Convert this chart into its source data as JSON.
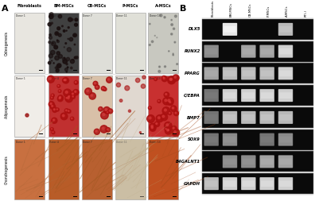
{
  "panel_A_label": "A",
  "panel_B_label": "B",
  "col_headers": [
    "Fibroblasts",
    "BM-MSCs",
    "CB-MSCs",
    "P-MSCs",
    "A-MSCs"
  ],
  "row_labels": [
    "Osteogenesis",
    "Adipogenesis",
    "Chondrogenesis"
  ],
  "donor_labels": [
    "Donor 1",
    "Donor 4",
    "Donor 7",
    "Donor 11",
    "Donor 13"
  ],
  "gel_columns": [
    "Fibroblasts",
    "BM-MSCs",
    "CB-MSCs",
    "P-MSCs",
    "A-MSCs",
    "RT(-)"
  ],
  "gel_genes": [
    "DLX5",
    "RUNX2",
    "PPARG",
    "C/EBPA",
    "BMP7",
    "SOX9",
    "B4GALNT1",
    "GAPDH"
  ],
  "band_presence": {
    "DLX5": [
      0,
      1,
      0,
      0,
      1,
      0
    ],
    "RUNX2": [
      1,
      0,
      1,
      1,
      1,
      0
    ],
    "PPARG": [
      1,
      1,
      1,
      1,
      1,
      0
    ],
    "C/EBPA": [
      1,
      1,
      1,
      1,
      1,
      0
    ],
    "BMP7": [
      1,
      1,
      1,
      1,
      1,
      0
    ],
    "SOX9": [
      1,
      1,
      0,
      1,
      1,
      0
    ],
    "B4GALNT1": [
      0,
      1,
      1,
      1,
      1,
      0
    ],
    "GAPDH": [
      1,
      1,
      1,
      1,
      1,
      0
    ]
  },
  "band_brightness": {
    "DLX5": [
      0,
      1.0,
      0,
      0,
      0.8,
      0
    ],
    "RUNX2": [
      0.6,
      0,
      0.7,
      0.7,
      0.9,
      0
    ],
    "PPARG": [
      0.7,
      0.8,
      0.8,
      0.8,
      0.9,
      0
    ],
    "C/EBPA": [
      0.5,
      0.9,
      0.9,
      0.9,
      0.9,
      0
    ],
    "BMP7": [
      0.5,
      0.8,
      0.8,
      0.8,
      0.8,
      0
    ],
    "SOX9": [
      0.5,
      0.6,
      0,
      0.5,
      0.6,
      0
    ],
    "B4GALNT1": [
      0,
      0.6,
      0.6,
      0.7,
      0.7,
      0
    ],
    "GAPDH": [
      0.8,
      0.9,
      0.9,
      0.9,
      0.9,
      0
    ]
  },
  "osteogenesis_colors": [
    "#e8e6e0",
    "#404040",
    "#deded8",
    "#e0e0d8",
    "#c8c8c0"
  ],
  "adipogenesis_colors": [
    "#f0ede8",
    "#c03030",
    "#d8c0a8",
    "#e0d8d0",
    "#c83030"
  ],
  "chondrogenesis_colors": [
    "#c87040",
    "#b85c28",
    "#b86030",
    "#c8b898",
    "#c05020"
  ],
  "background": "#ffffff",
  "border_color": "#aaaaaa",
  "gel_bg": "#111111",
  "band_color": "#e8e8e0"
}
